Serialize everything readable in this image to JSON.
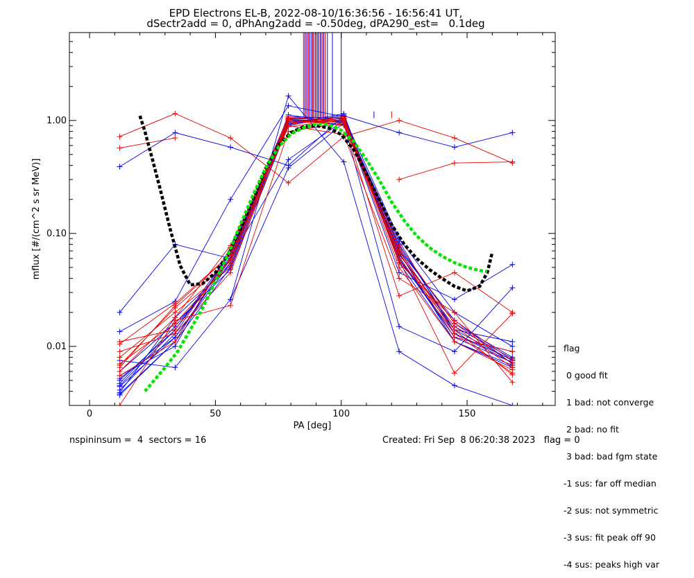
{
  "title": {
    "line1": "EPD Electrons EL-B, 2022-08-10/16:36:56 - 16:56:41 UT,",
    "line2": "dSectr2add = 0, dPhAng2add = -0.50deg, dPA290_est=   0.1deg"
  },
  "footer": {
    "left": "nspininsum =  4  sectors = 16",
    "right": "Created: Fri Sep  8 06:20:38 2023   flag = 0"
  },
  "legend": {
    "title": "flag",
    "items": [
      " 0 good fit",
      " 1 bad: not converge",
      " 2 bad: no fit",
      " 3 bad: bad fgm state",
      "-1 sus: far off median",
      "-2 sus: not symmetric",
      "-3 sus: fit peak off 90",
      "-4 sus: peaks high var"
    ]
  },
  "colors": {
    "red": "#e60000",
    "blue": "#0000e6",
    "black": "#000000",
    "green": "#00e600"
  },
  "chart_data": {
    "type": "line",
    "xlabel": "PA [deg]",
    "ylabel": "mflux [#/(cm^2 s sr MeV)]",
    "xlim": [
      -8,
      185
    ],
    "ylim": [
      0.003,
      6.0
    ],
    "yscale": "log",
    "x_ticks": [
      0,
      50,
      100,
      150
    ],
    "x_tick_labels": [
      "0",
      "50",
      "100",
      "150"
    ],
    "y_ticks": [
      0.01,
      0.1,
      1.0
    ],
    "y_tick_labels": [
      "0.01",
      "0.10",
      "1.00"
    ],
    "pa_bins": [
      12,
      34,
      56,
      79,
      101,
      123,
      145,
      168
    ],
    "series": [
      {
        "color": "red",
        "values": [
          0.72,
          1.15,
          0.7,
          0.28,
          0.72,
          1.0,
          0.7,
          0.42
        ]
      },
      {
        "color": "red",
        "values": [
          0.57,
          0.7,
          null,
          null,
          null,
          0.3,
          0.42,
          0.43
        ]
      },
      {
        "color": "blue",
        "values": [
          0.39,
          0.78,
          0.58,
          0.4,
          1.1,
          0.78,
          0.58,
          0.78
        ]
      },
      {
        "color": "blue",
        "values": [
          0.0045,
          0.014,
          0.062,
          0.95,
          1.0,
          0.07,
          0.014,
          0.0075
        ]
      },
      {
        "color": "blue",
        "values": [
          0.0052,
          0.012,
          0.055,
          1.02,
          0.97,
          0.062,
          0.012,
          0.0072
        ]
      },
      {
        "color": "blue",
        "values": [
          0.0038,
          0.011,
          0.07,
          1.08,
          1.05,
          0.075,
          0.016,
          0.008
        ]
      },
      {
        "color": "blue",
        "values": [
          0.006,
          0.016,
          0.048,
          0.9,
          1.12,
          0.055,
          0.011,
          0.0068
        ]
      },
      {
        "color": "blue",
        "values": [
          0.0041,
          0.013,
          0.066,
          1.0,
          0.92,
          0.066,
          0.015,
          0.0078
        ]
      },
      {
        "color": "blue",
        "values": [
          0.0047,
          0.015,
          0.058,
          1.05,
          1.0,
          0.085,
          0.013,
          0.0072
        ]
      },
      {
        "color": "blue",
        "values": [
          0.0055,
          0.01,
          0.075,
          0.97,
          1.08,
          0.06,
          0.012,
          0.009
        ]
      },
      {
        "color": "blue",
        "values": [
          0.0039,
          0.018,
          0.052,
          1.12,
          0.95,
          0.072,
          0.017,
          0.007
        ]
      },
      {
        "color": "blue",
        "values": [
          0.0044,
          0.012,
          0.06,
          0.93,
          1.15,
          0.058,
          0.013,
          0.0076
        ]
      },
      {
        "color": "blue",
        "values": [
          0.005,
          0.014,
          0.068,
          1.0,
          0.98,
          0.068,
          0.011,
          0.0065
        ]
      },
      {
        "color": "blue",
        "values": [
          0.0037,
          0.011,
          0.05,
          1.03,
          1.03,
          0.08,
          0.014,
          0.011
        ]
      },
      {
        "color": "blue",
        "values": [
          0.0135,
          0.025,
          0.2,
          1.35,
          1.08,
          0.09,
          0.02,
          0.01
        ]
      },
      {
        "color": "blue",
        "values": [
          0.02,
          0.08,
          0.06,
          0.45,
          1.0,
          0.045,
          0.026,
          0.053
        ]
      },
      {
        "color": "blue",
        "values": [
          0.0075,
          0.0065,
          0.026,
          1.65,
          0.43,
          0.009,
          0.0045,
          0.003
        ]
      },
      {
        "color": "blue",
        "values": [
          null,
          null,
          0.026,
          0.38,
          0.95,
          0.015,
          0.009,
          0.033
        ]
      },
      {
        "color": "red",
        "values": [
          0.0065,
          0.023,
          0.065,
          0.98,
          0.95,
          0.065,
          0.015,
          0.0065
        ]
      },
      {
        "color": "red",
        "values": [
          0.007,
          0.016,
          0.055,
          1.05,
          1.0,
          0.072,
          0.013,
          0.0058
        ]
      },
      {
        "color": "red",
        "values": [
          0.006,
          0.018,
          0.078,
          0.92,
          1.05,
          0.055,
          0.017,
          0.0075
        ]
      },
      {
        "color": "red",
        "values": [
          0.011,
          0.014,
          0.06,
          1.02,
          0.9,
          0.068,
          0.012,
          0.009
        ]
      },
      {
        "color": "red",
        "values": [
          0.008,
          0.02,
          0.05,
          0.95,
          1.08,
          0.06,
          0.014,
          0.0056
        ]
      },
      {
        "color": "red",
        "values": [
          0.0055,
          0.011,
          0.07,
          1.08,
          0.97,
          0.078,
          0.016,
          0.007
        ]
      },
      {
        "color": "red",
        "values": [
          0.0068,
          0.022,
          0.058,
          0.88,
          1.02,
          0.05,
          0.011,
          0.0062
        ]
      },
      {
        "color": "red",
        "values": [
          0.003,
          0.017,
          0.023,
          0.8,
          0.95,
          0.028,
          0.045,
          0.02
        ]
      },
      {
        "color": "red",
        "values": [
          0.009,
          0.013,
          0.045,
          1.0,
          0.98,
          0.058,
          0.0058,
          0.0195
        ]
      },
      {
        "color": "red",
        "values": [
          0.0105,
          0.024,
          0.065,
          0.9,
          0.75,
          0.04,
          0.02,
          0.0048
        ]
      }
    ],
    "fit_curves": [
      {
        "color": "black",
        "style": "dashed",
        "x": [
          20,
          22,
          25,
          28,
          32,
          36,
          40,
          45,
          50,
          55,
          60,
          65,
          70,
          75,
          80,
          85,
          90,
          95,
          100,
          105,
          110,
          115,
          120,
          125,
          130,
          135,
          140,
          145,
          150,
          155,
          158,
          160
        ],
        "y": [
          1.1,
          0.8,
          0.45,
          0.25,
          0.11,
          0.052,
          0.035,
          0.036,
          0.045,
          0.065,
          0.11,
          0.2,
          0.38,
          0.6,
          0.78,
          0.88,
          0.9,
          0.86,
          0.75,
          0.55,
          0.34,
          0.2,
          0.12,
          0.08,
          0.06,
          0.048,
          0.04,
          0.034,
          0.031,
          0.034,
          0.045,
          0.068
        ]
      },
      {
        "color": "green",
        "style": "dashed",
        "x": [
          22,
          25,
          30,
          35,
          40,
          45,
          50,
          55,
          60,
          65,
          70,
          75,
          80,
          85,
          90,
          95,
          100,
          105,
          110,
          115,
          120,
          125,
          130,
          135,
          140,
          145,
          150,
          155,
          158
        ],
        "y": [
          0.004,
          0.0048,
          0.0065,
          0.009,
          0.014,
          0.022,
          0.038,
          0.065,
          0.12,
          0.22,
          0.38,
          0.58,
          0.76,
          0.86,
          0.93,
          0.92,
          0.82,
          0.65,
          0.45,
          0.3,
          0.19,
          0.13,
          0.095,
          0.075,
          0.063,
          0.055,
          0.05,
          0.047,
          0.046
        ]
      }
    ],
    "saturated_lines": {
      "baseline_y": 1.05,
      "blue_x": [
        85.5,
        86.5,
        87.5,
        88.2,
        89.0,
        90.0,
        91.0,
        92.0,
        93.0,
        94.5,
        96.5,
        100.0,
        113.0
      ],
      "red_x": [
        85.0,
        86.0,
        87.0,
        88.6,
        89.6,
        90.6,
        91.6,
        92.6,
        93.6,
        120.0
      ],
      "top_y": 6.0,
      "stub_top_y": [
        1.2,
        1.2
      ]
    }
  }
}
